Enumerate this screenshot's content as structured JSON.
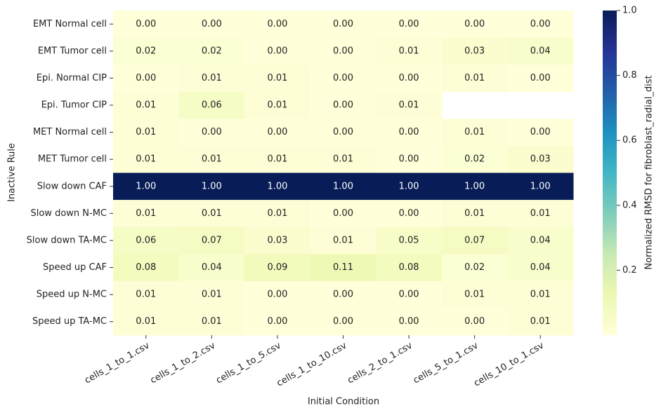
{
  "chart_data": {
    "type": "heatmap",
    "x_label": "Initial Condition",
    "y_label": "Inactive Rule",
    "colorbar_label": "Normalized RMSD for fibroblast_radial_dist",
    "colormap": "YlGnBu",
    "x": [
      "cells_1_to_1.csv",
      "cells_1_to_2.csv",
      "cells_1_to_5.csv",
      "cells_1_to_10.csv",
      "cells_2_to_1.csv",
      "cells_5_to_1.csv",
      "cells_10_to_1.csv"
    ],
    "y": [
      "EMT Normal cell",
      "EMT Tumor cell",
      "Epi. Normal CIP",
      "Epi. Tumor CIP",
      "MET Normal cell",
      "MET Tumor cell",
      "Slow down CAF",
      "Slow down N-MC",
      "Slow down TA-MC",
      "Speed up CAF",
      "Speed up N-MC",
      "Speed up TA-MC"
    ],
    "values": [
      [
        0,
        0,
        0,
        0,
        0,
        0,
        0
      ],
      [
        0.02,
        0.02,
        0,
        0,
        0.01,
        0.03,
        0.04
      ],
      [
        0,
        0.01,
        0.01,
        0,
        0,
        0.01,
        0
      ],
      [
        0.01,
        0.06,
        0.01,
        0,
        0.01,
        null,
        null
      ],
      [
        0.01,
        0,
        0,
        0,
        0,
        0.01,
        0
      ],
      [
        0.01,
        0.01,
        0.01,
        0.01,
        0,
        0.02,
        0.03
      ],
      [
        1,
        1,
        1,
        1,
        1,
        1,
        1
      ],
      [
        0.01,
        0.01,
        0.01,
        0,
        0,
        0.01,
        0.01
      ],
      [
        0.06,
        0.07,
        0.03,
        0.01,
        0.05,
        0.07,
        0.04
      ],
      [
        0.08,
        0.04,
        0.09,
        0.11,
        0.08,
        0.02,
        0.04
      ],
      [
        0.01,
        0.01,
        0,
        0,
        0,
        0.01,
        0.01
      ],
      [
        0.01,
        0.01,
        0,
        0,
        0,
        0,
        0.01
      ]
    ],
    "value_labels": [
      [
        "0.00",
        "0.00",
        "0.00",
        "0.00",
        "0.00",
        "0.00",
        "0.00"
      ],
      [
        "0.02",
        "0.02",
        "0.00",
        "0.00",
        "0.01",
        "0.03",
        "0.04"
      ],
      [
        "0.00",
        "0.01",
        "0.01",
        "0.00",
        "0.00",
        "0.01",
        "0.00"
      ],
      [
        "0.01",
        "0.06",
        "0.01",
        "0.00",
        "0.01",
        null,
        null
      ],
      [
        "0.01",
        "0.00",
        "0.00",
        "0.00",
        "0.00",
        "0.01",
        "0.00"
      ],
      [
        "0.01",
        "0.01",
        "0.01",
        "0.01",
        "0.00",
        "0.02",
        "0.03"
      ],
      [
        "1.00",
        "1.00",
        "1.00",
        "1.00",
        "1.00",
        "1.00",
        "1.00"
      ],
      [
        "0.01",
        "0.01",
        "0.01",
        "0.00",
        "0.00",
        "0.01",
        "0.01"
      ],
      [
        "0.06",
        "0.07",
        "0.03",
        "0.01",
        "0.05",
        "0.07",
        "0.04"
      ],
      [
        "0.08",
        "0.04",
        "0.09",
        "0.11",
        "0.08",
        "0.02",
        "0.04"
      ],
      [
        "0.01",
        "0.01",
        "0.00",
        "0.00",
        "0.00",
        "0.01",
        "0.01"
      ],
      [
        "0.01",
        "0.01",
        "0.00",
        "0.00",
        "0.00",
        "0.00",
        "0.01"
      ]
    ],
    "clim": [
      0,
      1
    ],
    "cticks": [
      0.2,
      0.4,
      0.6,
      0.8,
      {
        "value": 1,
        "label": "1.0"
      }
    ]
  }
}
